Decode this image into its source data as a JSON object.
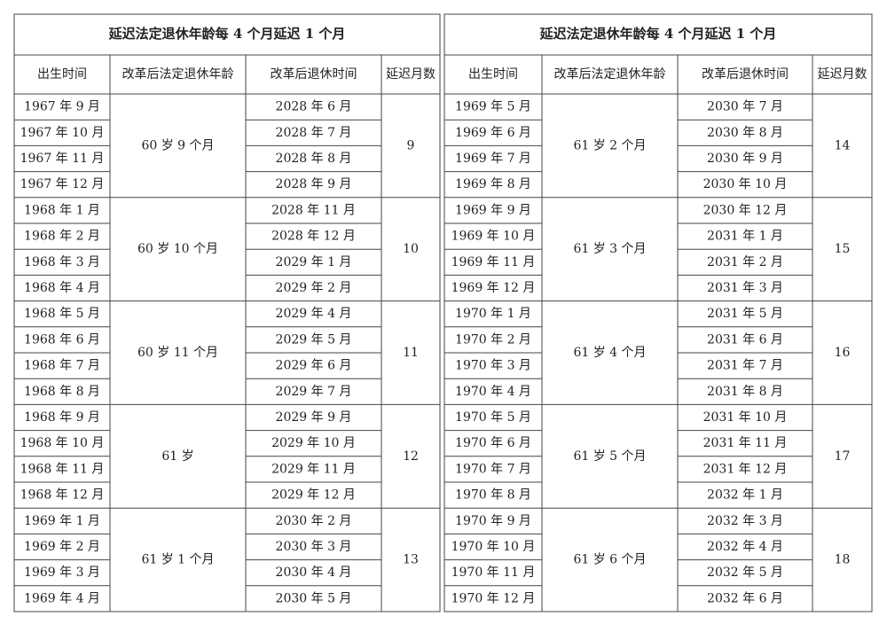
{
  "tables": [
    {
      "title": "延迟法定退休年龄每 4 个月延迟 1 个月",
      "headers": [
        "出生时间",
        "改革后法定退休年龄",
        "改革后退休时间",
        "延迟月数"
      ],
      "groups": [
        {
          "age": "60 岁 9 个月",
          "delay": 9,
          "rows": [
            {
              "birth": "1967 年 9 月",
              "retire": "2028 年 6 月"
            },
            {
              "birth": "1967 年 10 月",
              "retire": "2028 年 7 月"
            },
            {
              "birth": "1967 年 11 月",
              "retire": "2028 年 8 月"
            },
            {
              "birth": "1967 年 12 月",
              "retire": "2028 年 9 月"
            }
          ]
        },
        {
          "age": "60 岁 10 个月",
          "delay": 10,
          "rows": [
            {
              "birth": "1968 年 1 月",
              "retire": "2028 年 11 月"
            },
            {
              "birth": "1968 年 2 月",
              "retire": "2028 年 12 月"
            },
            {
              "birth": "1968 年 3 月",
              "retire": "2029 年 1 月"
            },
            {
              "birth": "1968 年 4 月",
              "retire": "2029 年 2 月"
            }
          ]
        },
        {
          "age": "60 岁 11 个月",
          "delay": 11,
          "rows": [
            {
              "birth": "1968 年 5 月",
              "retire": "2029 年 4 月"
            },
            {
              "birth": "1968 年 6 月",
              "retire": "2029 年 5 月"
            },
            {
              "birth": "1968 年 7 月",
              "retire": "2029 年 6 月"
            },
            {
              "birth": "1968 年 8 月",
              "retire": "2029 年 7 月"
            }
          ]
        },
        {
          "age": "61 岁",
          "delay": 12,
          "rows": [
            {
              "birth": "1968 年 9 月",
              "retire": "2029 年 9 月"
            },
            {
              "birth": "1968 年 10 月",
              "retire": "2029 年 10 月"
            },
            {
              "birth": "1968 年 11 月",
              "retire": "2029 年 11 月"
            },
            {
              "birth": "1968 年 12 月",
              "retire": "2029 年 12 月"
            }
          ]
        },
        {
          "age": "61 岁 1 个月",
          "delay": 13,
          "rows": [
            {
              "birth": "1969 年 1 月",
              "retire": "2030 年 2 月"
            },
            {
              "birth": "1969 年 2 月",
              "retire": "2030 年 3 月"
            },
            {
              "birth": "1969 年 3 月",
              "retire": "2030 年 4 月"
            },
            {
              "birth": "1969 年 4 月",
              "retire": "2030 年 5 月"
            }
          ]
        }
      ]
    },
    {
      "title": "延迟法定退休年龄每 4 个月延迟 1 个月",
      "headers": [
        "出生时间",
        "改革后法定退休年龄",
        "改革后退休时间",
        "延迟月数"
      ],
      "groups": [
        {
          "age": "61 岁 2 个月",
          "delay": 14,
          "rows": [
            {
              "birth": "1969 年 5 月",
              "retire": "2030 年 7 月"
            },
            {
              "birth": "1969 年 6 月",
              "retire": "2030 年 8 月"
            },
            {
              "birth": "1969 年 7 月",
              "retire": "2030 年 9 月"
            },
            {
              "birth": "1969 年 8 月",
              "retire": "2030 年 10 月"
            }
          ]
        },
        {
          "age": "61 岁 3 个月",
          "delay": 15,
          "rows": [
            {
              "birth": "1969 年 9 月",
              "retire": "2030 年 12 月"
            },
            {
              "birth": "1969 年 10 月",
              "retire": "2031 年 1 月"
            },
            {
              "birth": "1969 年 11 月",
              "retire": "2031 年 2 月"
            },
            {
              "birth": "1969 年 12 月",
              "retire": "2031 年 3 月"
            }
          ]
        },
        {
          "age": "61 岁 4 个月",
          "delay": 16,
          "rows": [
            {
              "birth": "1970 年 1 月",
              "retire": "2031 年 5 月"
            },
            {
              "birth": "1970 年 2 月",
              "retire": "2031 年 6 月"
            },
            {
              "birth": "1970 年 3 月",
              "retire": "2031 年 7 月"
            },
            {
              "birth": "1970 年 4 月",
              "retire": "2031 年 8 月"
            }
          ]
        },
        {
          "age": "61 岁 5 个月",
          "delay": 17,
          "rows": [
            {
              "birth": "1970 年 5 月",
              "retire": "2031 年 10 月"
            },
            {
              "birth": "1970 年 6 月",
              "retire": "2031 年 11 月"
            },
            {
              "birth": "1970 年 7 月",
              "retire": "2031 年 12 月"
            },
            {
              "birth": "1970 年 8 月",
              "retire": "2032 年 1 月"
            }
          ]
        },
        {
          "age": "61 岁 6 个月",
          "delay": 18,
          "rows": [
            {
              "birth": "1970 年 9 月",
              "retire": "2032 年 3 月"
            },
            {
              "birth": "1970 年 10 月",
              "retire": "2032 年 4 月"
            },
            {
              "birth": "1970 年 11 月",
              "retire": "2032 年 5 月"
            },
            {
              "birth": "1970 年 12 月",
              "retire": "2032 年 6 月"
            }
          ]
        }
      ]
    }
  ]
}
